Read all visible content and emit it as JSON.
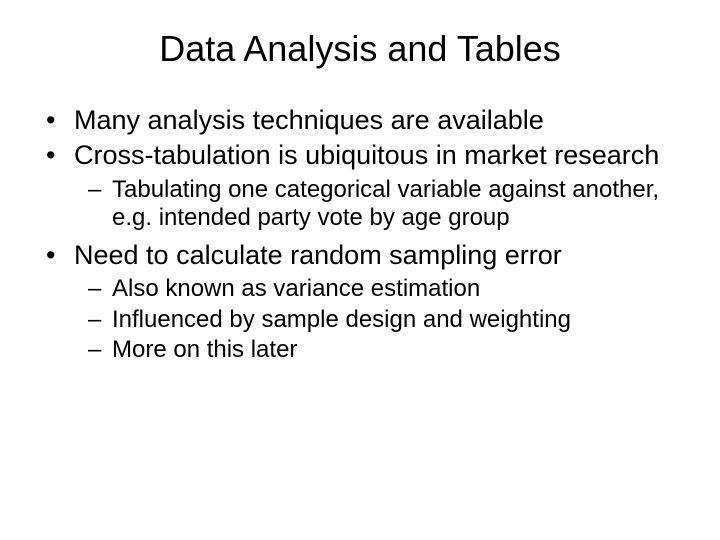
{
  "slide": {
    "title": "Data Analysis and Tables",
    "title_fontsize": 36,
    "body_fontsize_level1": 27,
    "body_fontsize_level2": 24,
    "background_color": "#ffffff",
    "text_color": "#000000",
    "font_family": "Arial",
    "bullets": [
      {
        "text": "Many analysis techniques are available",
        "children": []
      },
      {
        "text": "Cross-tabulation is ubiquitous in market research",
        "children": [
          {
            "text": "Tabulating one categorical variable against another, e.g. intended party vote by age group"
          }
        ]
      },
      {
        "text": "Need to calculate random sampling error",
        "children": [
          {
            "text": "Also known as variance estimation"
          },
          {
            "text": "Influenced by sample design and weighting"
          },
          {
            "text": "More on this later"
          }
        ]
      }
    ]
  }
}
